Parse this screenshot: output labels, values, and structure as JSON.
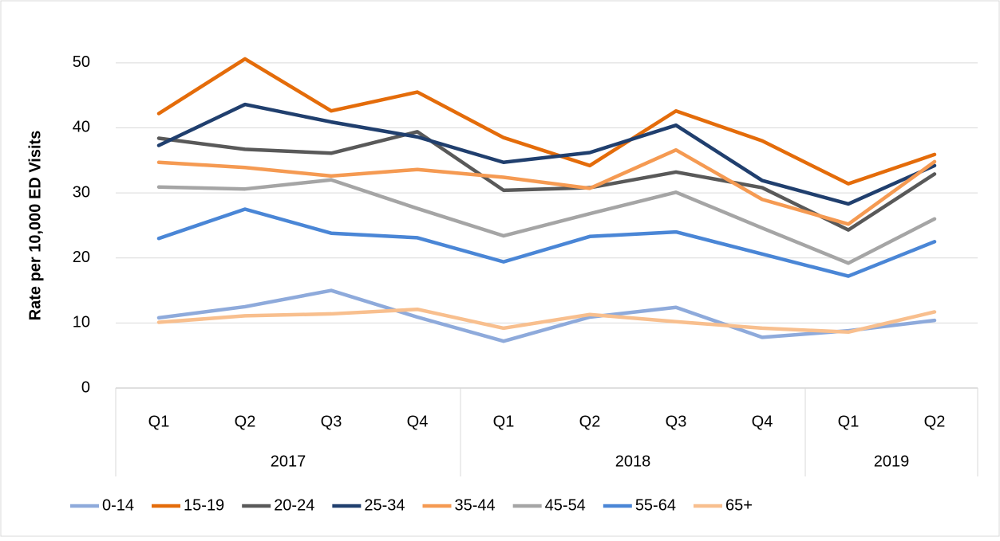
{
  "chart_data": {
    "type": "line",
    "y_label": "Rate per 10,000 ED Visits",
    "category_groups": [
      {
        "label": "2017",
        "labels": [
          "Q1",
          "Q2",
          "Q3",
          "Q4"
        ]
      },
      {
        "label": "2018",
        "labels": [
          "Q1",
          "Q2",
          "Q3",
          "Q4"
        ]
      },
      {
        "label": "2019",
        "labels": [
          "Q1",
          "Q2"
        ]
      }
    ],
    "series": [
      {
        "name": "0-14",
        "color": "#8eaadb",
        "values": [
          10.8,
          12.5,
          15.0,
          10.9,
          7.2,
          10.9,
          12.4,
          7.8,
          8.8,
          10.4
        ]
      },
      {
        "name": "15-19",
        "color": "#e46c0a",
        "values": [
          42.2,
          50.6,
          42.6,
          45.5,
          38.5,
          34.2,
          42.6,
          38.0,
          31.4,
          35.9
        ]
      },
      {
        "name": "20-24",
        "color": "#595959",
        "values": [
          38.4,
          36.7,
          36.1,
          39.4,
          30.4,
          30.8,
          33.2,
          30.8,
          24.3,
          32.9
        ]
      },
      {
        "name": "25-34",
        "color": "#203f6e",
        "values": [
          37.3,
          43.6,
          40.9,
          38.6,
          34.7,
          36.2,
          40.4,
          31.9,
          28.3,
          34.2
        ]
      },
      {
        "name": "35-44",
        "color": "#f59a52",
        "values": [
          34.7,
          33.9,
          32.6,
          33.6,
          32.4,
          30.7,
          36.6,
          29.0,
          25.2,
          34.8
        ]
      },
      {
        "name": "45-54",
        "color": "#a5a5a5",
        "values": [
          30.9,
          30.6,
          32.0,
          27.6,
          23.4,
          26.8,
          30.1,
          24.6,
          19.2,
          26.0
        ]
      },
      {
        "name": "55-64",
        "color": "#4a86d6",
        "values": [
          23.0,
          27.5,
          23.8,
          23.1,
          19.4,
          23.3,
          24.0,
          20.6,
          17.2,
          22.5
        ]
      },
      {
        "name": "65+",
        "color": "#f8bf8e",
        "values": [
          10.1,
          11.1,
          11.4,
          12.1,
          9.2,
          11.3,
          10.2,
          9.2,
          8.6,
          11.7
        ]
      }
    ],
    "ylim": [
      0,
      55
    ],
    "yticks": [
      0,
      10,
      20,
      30,
      40,
      50
    ],
    "grid": true,
    "legend": "bottom"
  }
}
